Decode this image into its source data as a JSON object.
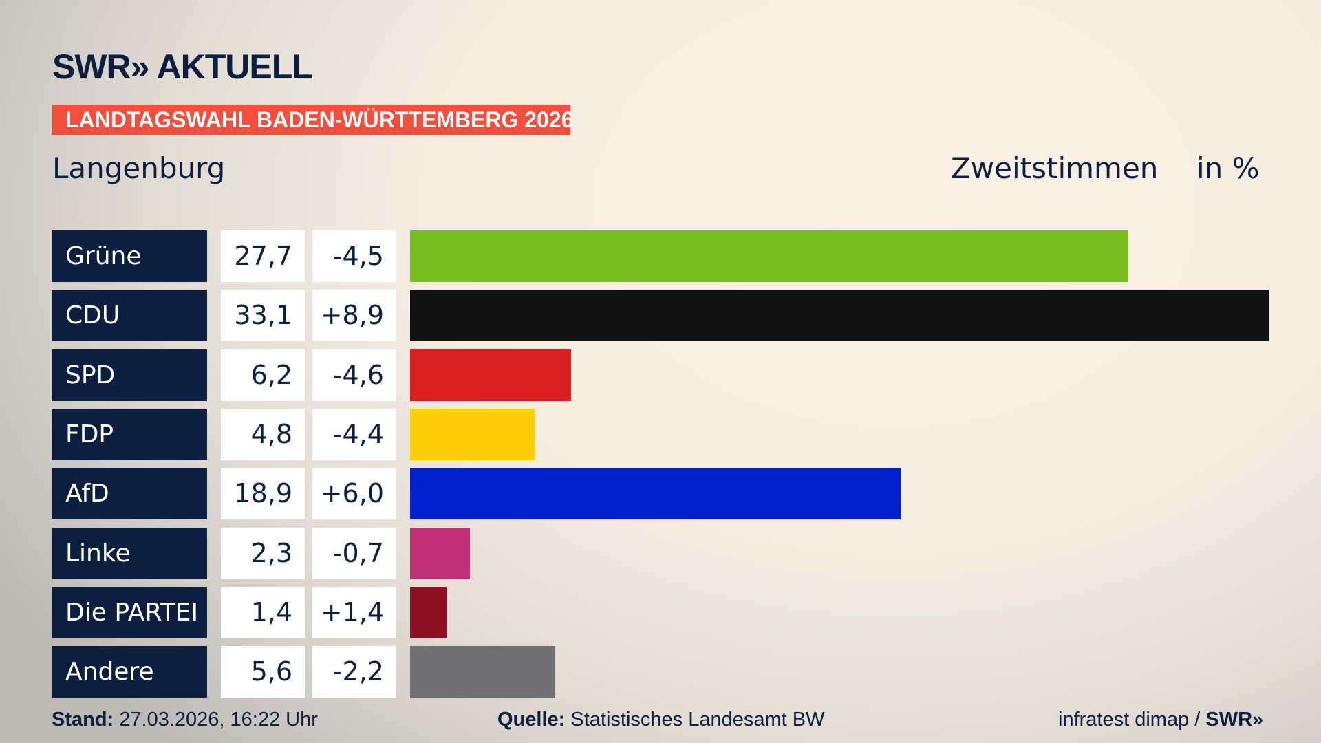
{
  "logo": "SWR» AKTUELL",
  "banner": "LANDTAGSWAHL BADEN-WÜRTTEMBERG 2026",
  "region": "Langenburg",
  "vote_type": "Zweitstimmen",
  "unit": "in %",
  "chart_data": {
    "type": "bar",
    "orientation": "horizontal",
    "categories": [
      "Grüne",
      "CDU",
      "SPD",
      "FDP",
      "AfD",
      "Linke",
      "Die PARTEI",
      "Andere"
    ],
    "values": [
      27.7,
      33.1,
      6.2,
      4.8,
      18.9,
      2.3,
      1.4,
      5.6
    ],
    "value_labels": [
      "27,7",
      "33,1",
      "6,2",
      "4,8",
      "18,9",
      "2,3",
      "1,4",
      "5,6"
    ],
    "diff_labels": [
      "-4,5",
      "+8,9",
      "-4,6",
      "-4,4",
      "+6,0",
      "-0,7",
      "+1,4",
      "-2,2"
    ],
    "colors": [
      "#78bc1e",
      "#121212",
      "#d8201e",
      "#fdcf0b",
      "#0021c8",
      "#be3075",
      "#8c0f22",
      "#707072"
    ]
  },
  "footer": {
    "stand_label": "Stand:",
    "stand": "27.03.2026, 16:22 Uhr",
    "quelle_label": "Quelle:",
    "quelle": "Statistisches Landesamt BW",
    "credit": "infratest dimap /",
    "credit_brand": "SWR»"
  }
}
